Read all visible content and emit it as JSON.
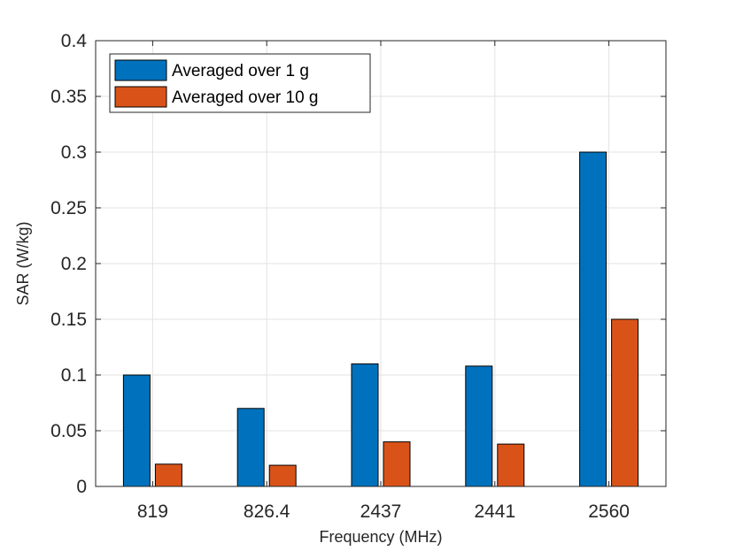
{
  "chart_data": {
    "type": "bar",
    "title": "",
    "xlabel": "Frequency (MHz)",
    "ylabel": "SAR (W/kg)",
    "categories": [
      "819",
      "826.4",
      "2437",
      "2441",
      "2560"
    ],
    "series": [
      {
        "name": "Averaged over 1 g",
        "color": "#0072BD",
        "values": [
          0.1,
          0.07,
          0.11,
          0.108,
          0.3
        ]
      },
      {
        "name": "Averaged over 10 g",
        "color": "#D95319",
        "values": [
          0.02,
          0.019,
          0.04,
          0.038,
          0.15
        ]
      }
    ],
    "ylim": [
      0,
      0.4
    ],
    "yticks": [
      0,
      0.05,
      0.1,
      0.15,
      0.2,
      0.25,
      0.3,
      0.35,
      0.4
    ],
    "ytick_labels": [
      "0",
      "0.05",
      "0.1",
      "0.15",
      "0.2",
      "0.25",
      "0.3",
      "0.35",
      "0.4"
    ],
    "grid": true,
    "legend_position": "top-left"
  }
}
